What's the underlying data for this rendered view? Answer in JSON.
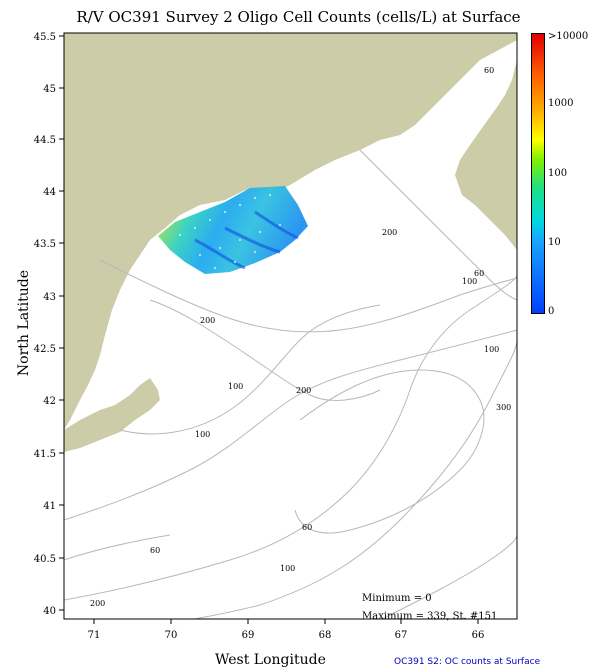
{
  "title": "R/V OC391 Survey 2 Oligo Cell Counts (cells/L) at Surface",
  "axes": {
    "xlabel": "West Longitude",
    "ylabel": "North Latitude",
    "x_ticks": [
      "71",
      "70",
      "69",
      "68",
      "67",
      "66"
    ],
    "y_ticks": [
      "45.5",
      "45",
      "44.5",
      "44",
      "43.5",
      "43",
      "42.5",
      "42",
      "41.5",
      "41",
      "40.5",
      "40"
    ]
  },
  "colorbar": {
    "labels": [
      ">10000",
      "1000",
      "100",
      "10",
      "0"
    ]
  },
  "contour_labels": [
    "60",
    "200",
    "60",
    "100",
    "200",
    "100",
    "300",
    "100",
    "60",
    "60",
    "100",
    "200"
  ],
  "stats": {
    "minimum": "Minimum = 0",
    "maximum": "Maximum = 339, St. #151"
  },
  "caption": "OC391 S2: OC counts at Surface",
  "colors": {
    "land": "#cccca8",
    "contour": "#b8b8b8",
    "caption": "#0000c0"
  }
}
